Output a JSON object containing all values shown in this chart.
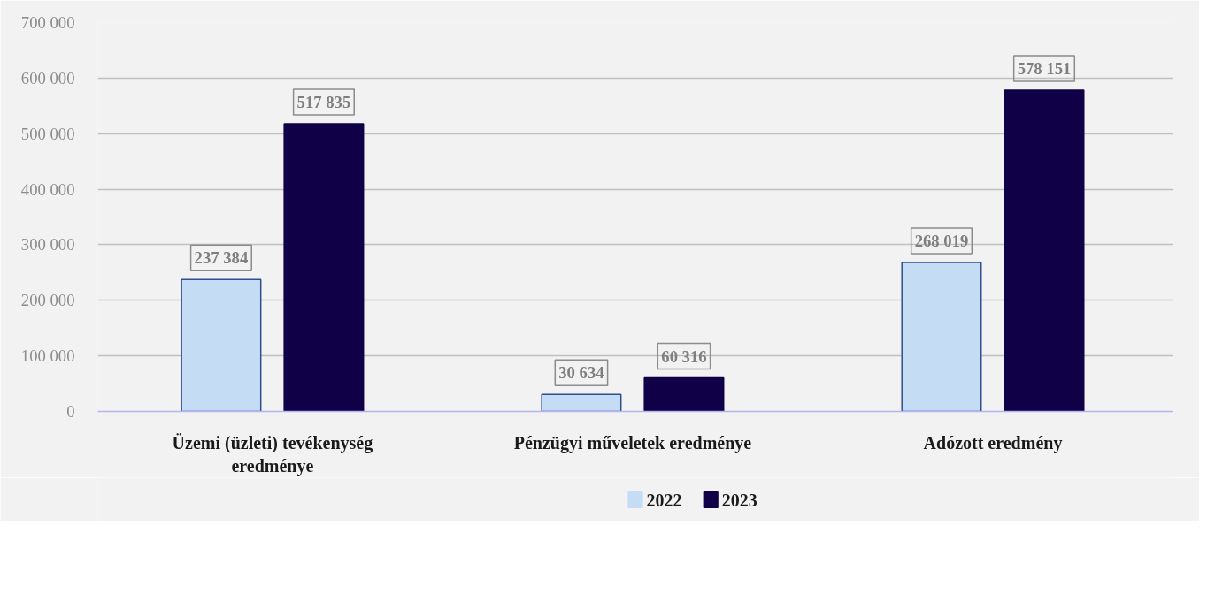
{
  "chart_data": {
    "type": "bar",
    "categories": [
      "Üzemi (üzleti) tevékenység eredménye",
      "Pénzügyi műveletek eredménye",
      "Adózott eredmény"
    ],
    "series": [
      {
        "name": "2022",
        "color": "#c5dcf5",
        "values": [
          237384,
          30634,
          268019
        ]
      },
      {
        "name": "2023",
        "color": "#0f0048",
        "values": [
          517835,
          60316,
          578151
        ]
      }
    ],
    "ylim": [
      0,
      700000
    ],
    "yticks": [
      {
        "value": 0,
        "label": "0"
      },
      {
        "value": 100000,
        "label": "100 000"
      },
      {
        "value": 200000,
        "label": "200 000"
      },
      {
        "value": 300000,
        "label": "300 000"
      },
      {
        "value": 400000,
        "label": "400 000"
      },
      {
        "value": 500000,
        "label": "500 000"
      },
      {
        "value": 600000,
        "label": "600 000"
      },
      {
        "value": 700000,
        "label": "700 000"
      }
    ],
    "value_labels": [
      [
        "237 384",
        "30 634",
        "268 019"
      ],
      [
        "517 835",
        "60 316",
        "578 151"
      ]
    ],
    "grid": "y",
    "legend": "bottom"
  }
}
